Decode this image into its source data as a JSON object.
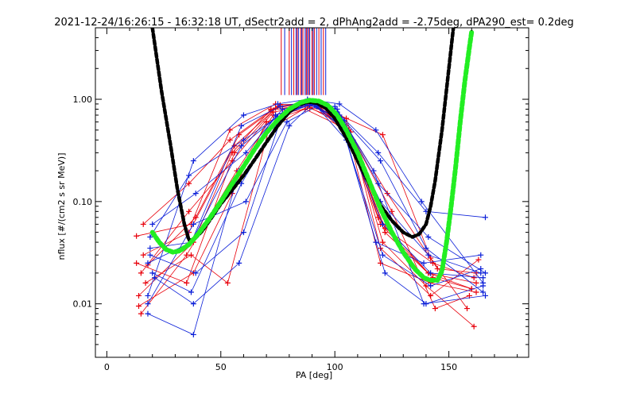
{
  "chart_data": {
    "type": "line",
    "title": "2021-12-24/16:26:15 - 16:32:18 UT, dSectr2add = 2, dPhAng2add = -2.75deg, dPA290_est=   0.2deg",
    "xlabel": "PA [deg]",
    "ylabel": "nflux [#/(cm2 s sr MeV)]",
    "xlim": [
      -5,
      185
    ],
    "ylim": [
      0.003,
      5.0
    ],
    "yscale": "log",
    "grid": false,
    "x_ticks": [
      {
        "value": 0,
        "label": "0"
      },
      {
        "value": 50,
        "label": "50"
      },
      {
        "value": 100,
        "label": "100"
      },
      {
        "value": 150,
        "label": "150"
      }
    ],
    "y_ticks": [
      {
        "value": 0.01,
        "label": "0.01"
      },
      {
        "value": 0.1,
        "label": "0.10"
      },
      {
        "value": 1.0,
        "label": "1.00"
      }
    ],
    "colors": {
      "red": "#e8000b",
      "blue": "#0a1ed8",
      "black": "#000000",
      "green": "#22ee22"
    },
    "black_fit": {
      "x": [
        20,
        24,
        28,
        31,
        34,
        36,
        38,
        42,
        46,
        50,
        55,
        60,
        65,
        70,
        75,
        80,
        84,
        88,
        92,
        96,
        100,
        105,
        110,
        115,
        120,
        125,
        130,
        134,
        137,
        140,
        142,
        144,
        147,
        150,
        152
      ],
      "y": [
        5.0,
        1.2,
        0.35,
        0.13,
        0.06,
        0.042,
        0.042,
        0.052,
        0.07,
        0.095,
        0.13,
        0.18,
        0.26,
        0.38,
        0.55,
        0.75,
        0.88,
        0.94,
        0.92,
        0.82,
        0.65,
        0.42,
        0.25,
        0.15,
        0.092,
        0.065,
        0.05,
        0.045,
        0.048,
        0.06,
        0.09,
        0.16,
        0.5,
        2.0,
        5.0
      ]
    },
    "green_fit": {
      "x": [
        20,
        23,
        26,
        29,
        32,
        36,
        40,
        45,
        50,
        55,
        60,
        65,
        70,
        75,
        80,
        85,
        89,
        93,
        97,
        101,
        105,
        110,
        115,
        120,
        125,
        130,
        135,
        139,
        142,
        145,
        147,
        149,
        151,
        153,
        155,
        157,
        159,
        160
      ],
      "y": [
        0.05,
        0.04,
        0.034,
        0.032,
        0.033,
        0.038,
        0.048,
        0.068,
        0.1,
        0.15,
        0.22,
        0.33,
        0.47,
        0.63,
        0.8,
        0.93,
        0.98,
        0.96,
        0.87,
        0.7,
        0.5,
        0.3,
        0.16,
        0.085,
        0.05,
        0.032,
        0.022,
        0.018,
        0.017,
        0.017,
        0.021,
        0.04,
        0.09,
        0.22,
        0.6,
        1.5,
        3.2,
        4.6
      ]
    },
    "vertical_markers": {
      "color_cycle": [
        "red",
        "blue"
      ],
      "y_bottom": 1.1,
      "x": [
        76.5,
        78,
        80,
        81,
        82,
        83,
        83.5,
        84,
        85,
        85.5,
        86,
        87,
        87.5,
        88,
        88.5,
        89,
        90,
        90.5,
        91,
        92,
        93,
        94,
        95,
        96
      ]
    },
    "series": [
      {
        "color": "red",
        "x": [
          14,
          38,
          55,
          72,
          88,
          103,
          120,
          141,
          162
        ],
        "y": [
          0.012,
          0.04,
          0.3,
          0.8,
          0.95,
          0.62,
          0.06,
          0.02,
          0.016
        ]
      },
      {
        "color": "red",
        "x": [
          16,
          36,
          56,
          75,
          90,
          105,
          122,
          143,
          160
        ],
        "y": [
          0.03,
          0.05,
          0.35,
          0.85,
          0.9,
          0.55,
          0.05,
          0.018,
          0.014
        ]
      },
      {
        "color": "red",
        "x": [
          13,
          37,
          54,
          74,
          92,
          108,
          120,
          142,
          163
        ],
        "y": [
          0.046,
          0.06,
          0.5,
          0.9,
          0.85,
          0.4,
          0.035,
          0.012,
          0.027
        ]
      },
      {
        "color": "red",
        "x": [
          15,
          35,
          57,
          73,
          89,
          104,
          125,
          144,
          159
        ],
        "y": [
          0.008,
          0.03,
          0.2,
          0.7,
          0.82,
          0.6,
          0.08,
          0.009,
          0.012
        ]
      },
      {
        "color": "red",
        "x": [
          18,
          39,
          58,
          76,
          91,
          107,
          121,
          140,
          161
        ],
        "y": [
          0.024,
          0.07,
          0.45,
          0.88,
          0.92,
          0.48,
          0.04,
          0.015,
          0.006
        ]
      },
      {
        "color": "red",
        "x": [
          14,
          38,
          55,
          70,
          87,
          106,
          123,
          145,
          162
        ],
        "y": [
          0.0095,
          0.02,
          0.12,
          0.6,
          0.8,
          0.5,
          0.12,
          0.022,
          0.02
        ]
      },
      {
        "color": "red",
        "x": [
          16,
          36,
          54,
          72,
          86,
          102,
          121,
          142,
          158
        ],
        "y": [
          0.06,
          0.15,
          0.4,
          0.78,
          0.88,
          0.7,
          0.45,
          0.028,
          0.009
        ]
      },
      {
        "color": "red",
        "x": [
          17,
          37,
          53,
          71,
          90,
          105,
          119,
          141,
          160
        ],
        "y": [
          0.016,
          0.03,
          0.016,
          0.5,
          0.9,
          0.65,
          0.07,
          0.02,
          0.014
        ]
      },
      {
        "color": "red",
        "x": [
          15,
          36,
          55,
          73,
          88,
          104,
          122,
          143,
          161
        ],
        "y": [
          0.02,
          0.08,
          0.25,
          0.75,
          0.86,
          0.55,
          0.055,
          0.025,
          0.018
        ]
      },
      {
        "color": "red",
        "x": [
          13,
          35,
          56,
          74,
          91,
          106,
          120,
          142,
          162
        ],
        "y": [
          0.025,
          0.016,
          0.3,
          0.82,
          0.95,
          0.45,
          0.025,
          0.016,
          0.013
        ]
      },
      {
        "color": "blue",
        "x": [
          18,
          38,
          60,
          75,
          88,
          102,
          118,
          138,
          165
        ],
        "y": [
          0.012,
          0.25,
          0.7,
          0.9,
          1.0,
          0.9,
          0.5,
          0.1,
          0.016
        ]
      },
      {
        "color": "blue",
        "x": [
          19,
          37,
          59,
          76,
          89,
          101,
          119,
          140,
          166
        ],
        "y": [
          0.035,
          0.04,
          0.55,
          0.85,
          0.95,
          0.75,
          0.3,
          0.08,
          0.07
        ]
      },
      {
        "color": "blue",
        "x": [
          20,
          39,
          61,
          77,
          90,
          103,
          120,
          141,
          164
        ],
        "y": [
          0.06,
          0.12,
          0.3,
          0.8,
          0.92,
          0.6,
          0.1,
          0.03,
          0.02
        ]
      },
      {
        "color": "blue",
        "x": [
          18,
          38,
          58,
          74,
          87,
          100,
          117,
          139,
          166
        ],
        "y": [
          0.008,
          0.005,
          0.2,
          0.7,
          0.88,
          0.85,
          0.2,
          0.01,
          0.012
        ]
      },
      {
        "color": "blue",
        "x": [
          19,
          36,
          60,
          78,
          91,
          104,
          121,
          142,
          165
        ],
        "y": [
          0.045,
          0.18,
          0.4,
          0.75,
          0.9,
          0.5,
          0.06,
          0.02,
          0.018
        ]
      },
      {
        "color": "blue",
        "x": [
          20,
          37,
          59,
          76,
          89,
          102,
          118,
          139,
          164
        ],
        "y": [
          0.02,
          0.013,
          0.15,
          0.65,
          0.94,
          0.7,
          0.04,
          0.025,
          0.03
        ]
      },
      {
        "color": "blue",
        "x": [
          18,
          38,
          61,
          79,
          92,
          105,
          122,
          140,
          165
        ],
        "y": [
          0.01,
          0.06,
          0.1,
          0.6,
          0.85,
          0.4,
          0.02,
          0.01,
          0.015
        ]
      },
      {
        "color": "blue",
        "x": [
          19,
          39,
          60,
          77,
          88,
          101,
          119,
          141,
          166
        ],
        "y": [
          0.03,
          0.02,
          0.05,
          0.72,
          0.97,
          0.8,
          0.15,
          0.045,
          0.02
        ]
      },
      {
        "color": "blue",
        "x": [
          21,
          38,
          58,
          80,
          90,
          103,
          121,
          142,
          164
        ],
        "y": [
          0.018,
          0.01,
          0.025,
          0.55,
          0.9,
          0.55,
          0.03,
          0.015,
          0.022
        ]
      },
      {
        "color": "blue",
        "x": [
          18,
          37,
          59,
          75,
          89,
          104,
          120,
          140,
          165
        ],
        "y": [
          0.025,
          0.04,
          0.35,
          0.68,
          0.88,
          0.62,
          0.25,
          0.035,
          0.013
        ]
      }
    ]
  }
}
